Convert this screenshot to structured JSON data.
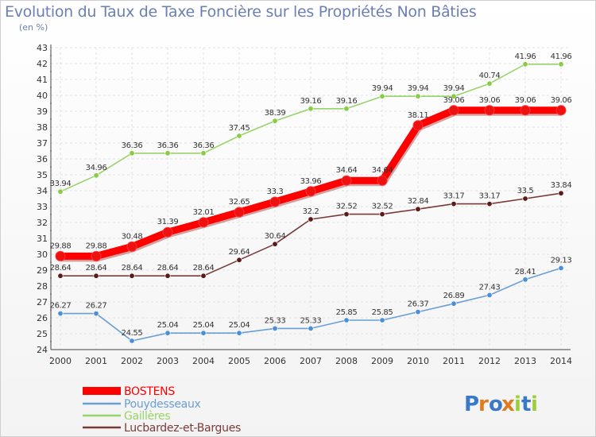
{
  "title": "Evolution du Taux de Taxe Foncière sur les Propriétés Non Bâties",
  "subtitle": "(en %)",
  "logo": {
    "text": "Proxiti"
  },
  "chart_data": {
    "type": "line",
    "title": "Evolution du Taux de Taxe Foncière sur les Propriétés Non Bâties",
    "ylabel": "(en %)",
    "xlabel": "",
    "x": [
      "2000",
      "2001",
      "2002",
      "2003",
      "2004",
      "2005",
      "2006",
      "2007",
      "2008",
      "2009",
      "2010",
      "2011",
      "2012",
      "2013",
      "2014"
    ],
    "ylim": [
      24,
      43
    ],
    "yticks": [
      "24",
      "25",
      "26",
      "27",
      "28",
      "29",
      "30",
      "31",
      "32",
      "33",
      "34",
      "35",
      "36",
      "37",
      "38",
      "39",
      "40",
      "41",
      "42",
      "43"
    ],
    "grid": true,
    "legend_position": "bottom-left",
    "series": [
      {
        "name": "BOSTENS",
        "color": "#ff0000",
        "marker": "#ee1111",
        "values": [
          29.88,
          29.88,
          30.48,
          31.39,
          32.01,
          32.65,
          33.3,
          33.96,
          34.64,
          34.64,
          38.11,
          39.06,
          39.06,
          39.06,
          39.06
        ],
        "labels": [
          "29.88",
          "29.88",
          "30.48",
          "31.39",
          "32.01",
          "32.65",
          "33.3",
          "33.96",
          "34.64",
          "34.64",
          "38.11",
          "39.06",
          "39.06",
          "39.06",
          "39.06"
        ]
      },
      {
        "name": "Pouydesseaux",
        "color": "#6a9fd4",
        "marker": "#4a90d9",
        "values": [
          26.27,
          26.27,
          24.55,
          25.04,
          25.04,
          25.04,
          25.33,
          25.33,
          25.85,
          25.85,
          26.37,
          26.89,
          27.43,
          28.41,
          29.13
        ],
        "labels": [
          "26.27",
          "26.27",
          "24.55",
          "25.04",
          "25.04",
          "25.04",
          "25.33",
          "25.33",
          "25.85",
          "25.85",
          "26.37",
          "26.89",
          "27.43",
          "28.41",
          "29.13"
        ]
      },
      {
        "name": "Gaillères",
        "color": "#9ad36a",
        "marker": "#88cc44",
        "values": [
          33.94,
          34.96,
          36.36,
          36.36,
          36.36,
          37.45,
          38.39,
          39.16,
          39.16,
          39.94,
          39.94,
          39.94,
          40.74,
          41.96,
          41.96
        ],
        "labels": [
          "33.94",
          "34.96",
          "36.36",
          "36.36",
          "36.36",
          "37.45",
          "38.39",
          "39.16",
          "39.16",
          "39.94",
          "39.94",
          "39.94",
          "40.74",
          "41.96",
          "41.96"
        ]
      },
      {
        "name": "Lucbardez-et-Bargues",
        "color": "#7a3a3a",
        "marker": "#5a1a1a",
        "values": [
          28.64,
          28.64,
          28.64,
          28.64,
          28.64,
          29.64,
          30.64,
          32.2,
          32.52,
          32.52,
          32.84,
          33.17,
          33.17,
          33.5,
          33.84
        ],
        "labels": [
          "28.64",
          "28.64",
          "28.64",
          "28.64",
          "28.64",
          "29.64",
          "30.64",
          "32.2",
          "32.52",
          "32.52",
          "32.84",
          "33.17",
          "33.17",
          "33.5",
          "33.84"
        ]
      }
    ]
  }
}
